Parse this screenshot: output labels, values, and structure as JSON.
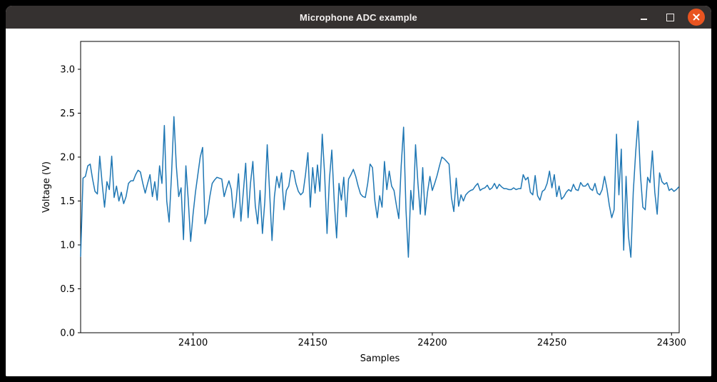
{
  "window": {
    "title": "Microphone ADC example",
    "titlebar_color": "#353130",
    "close_button_color": "#E95420",
    "controls": {
      "minimize_icon": "dash",
      "maximize_icon": "square-outline",
      "close_icon": "cross"
    }
  },
  "chart_data": {
    "type": "line",
    "title": "",
    "xlabel": "Samples",
    "ylabel": "Voltage (V)",
    "legend": null,
    "grid": false,
    "line_color": "#1f77b4",
    "background_color": "#ffffff",
    "spine_color": "#000000",
    "xlim": [
      24053,
      24303.2
    ],
    "ylim": [
      0.0,
      3.317
    ],
    "xticks": [
      24100,
      24150,
      24200,
      24250,
      24300
    ],
    "yticks": [
      0.0,
      0.5,
      1.0,
      1.5,
      2.0,
      2.5,
      3.0
    ],
    "x_start": 24053,
    "x_step": 1,
    "values": [
      0.87,
      1.76,
      1.78,
      1.9,
      1.92,
      1.75,
      1.61,
      1.58,
      2.01,
      1.7,
      1.43,
      1.72,
      1.63,
      2.01,
      1.54,
      1.67,
      1.5,
      1.6,
      1.47,
      1.55,
      1.7,
      1.73,
      1.73,
      1.8,
      1.85,
      1.83,
      1.7,
      1.59,
      1.7,
      1.8,
      1.55,
      1.72,
      1.51,
      1.9,
      1.7,
      2.36,
      1.5,
      1.26,
      1.8,
      2.46,
      1.9,
      1.55,
      1.65,
      1.06,
      1.9,
      1.51,
      1.04,
      1.35,
      1.6,
      1.8,
      2.0,
      2.11,
      1.24,
      1.35,
      1.55,
      1.7,
      1.74,
      1.77,
      1.76,
      1.75,
      1.55,
      1.65,
      1.73,
      1.63,
      1.31,
      1.5,
      1.81,
      1.27,
      1.6,
      1.93,
      1.31,
      1.7,
      1.95,
      1.45,
      1.24,
      1.62,
      1.13,
      1.5,
      2.14,
      1.6,
      1.05,
      1.55,
      1.78,
      1.65,
      1.82,
      1.4,
      1.62,
      1.67,
      1.85,
      1.84,
      1.7,
      1.61,
      1.57,
      1.6,
      1.8,
      2.05,
      1.43,
      1.88,
      1.59,
      1.91,
      1.61,
      2.26,
      1.8,
      1.13,
      1.75,
      2.08,
      1.5,
      1.08,
      1.7,
      1.51,
      1.77,
      1.32,
      1.75,
      1.8,
      1.86,
      1.78,
      1.67,
      1.58,
      1.55,
      1.54,
      1.7,
      1.92,
      1.88,
      1.5,
      1.31,
      1.56,
      1.43,
      1.95,
      1.63,
      1.84,
      1.67,
      1.62,
      1.45,
      1.3,
      1.9,
      2.34,
      1.4,
      0.86,
      1.62,
      1.4,
      2.14,
      1.7,
      1.35,
      1.88,
      1.34,
      1.6,
      1.78,
      1.62,
      1.7,
      1.79,
      1.9,
      2.0,
      1.98,
      1.95,
      1.92,
      1.54,
      1.38,
      1.76,
      1.44,
      1.57,
      1.5,
      1.57,
      1.6,
      1.62,
      1.63,
      1.67,
      1.7,
      1.62,
      1.64,
      1.65,
      1.68,
      1.63,
      1.65,
      1.7,
      1.64,
      1.69,
      1.66,
      1.64,
      1.64,
      1.63,
      1.63,
      1.65,
      1.63,
      1.64,
      1.64,
      1.8,
      1.74,
      1.77,
      1.6,
      1.57,
      1.79,
      1.56,
      1.51,
      1.61,
      1.63,
      1.7,
      1.84,
      1.65,
      1.8,
      1.55,
      1.67,
      1.52,
      1.55,
      1.6,
      1.63,
      1.61,
      1.69,
      1.63,
      1.62,
      1.71,
      1.67,
      1.67,
      1.7,
      1.64,
      1.62,
      1.7,
      1.59,
      1.57,
      1.63,
      1.78,
      1.64,
      1.45,
      1.31,
      1.4,
      2.26,
      1.57,
      2.09,
      0.94,
      1.78,
      1.1,
      0.86,
      1.6,
      2.05,
      2.41,
      1.8,
      1.43,
      1.4,
      1.77,
      1.71,
      2.07,
      1.6,
      1.35,
      1.82,
      1.72,
      1.69,
      1.71,
      1.62,
      1.64,
      1.61,
      1.63,
      1.66
    ]
  }
}
